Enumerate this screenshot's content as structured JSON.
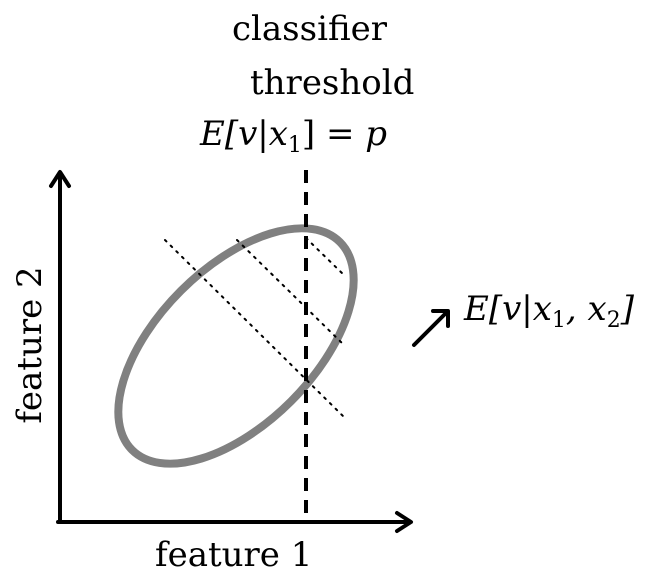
{
  "title": {
    "line1": "classifier",
    "line2": "threshold",
    "equation": {
      "lhs": "E[v|x",
      "sub": "1",
      "rest": "] = ",
      "rhs": "p"
    }
  },
  "axes": {
    "xlabel": "feature 1",
    "ylabel": "feature 2"
  },
  "direction_label": {
    "lhs": "E[v|x",
    "sub1": "1",
    "mid": ", x",
    "sub2": "2",
    "end": "]"
  },
  "colors": {
    "ellipse": "#808080",
    "lines": "#000000"
  }
}
